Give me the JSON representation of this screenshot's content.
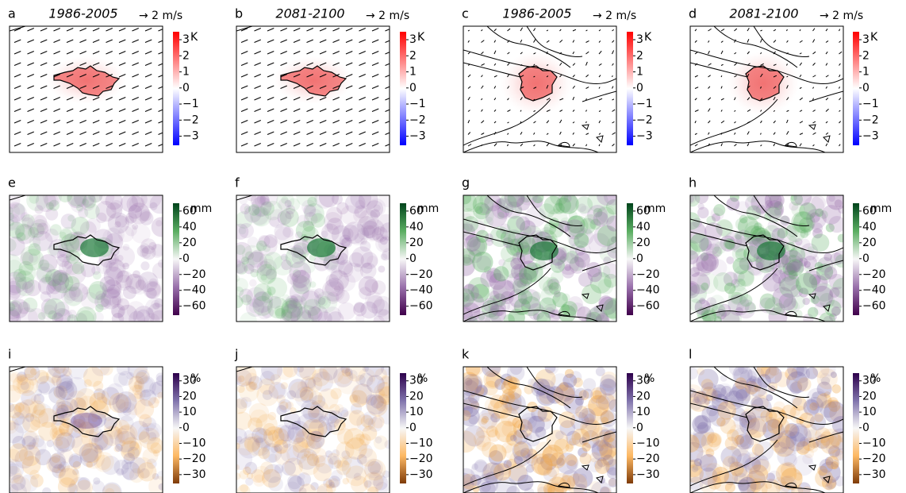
{
  "panels": [
    {
      "label": "a",
      "title": "1986-2005",
      "scale": "→ 2 m/s"
    },
    {
      "label": "b",
      "title": "2081-2100",
      "scale": "→ 2 m/s"
    },
    {
      "label": "c",
      "title": "1986-2005",
      "scale": "→ 2 m/s"
    },
    {
      "label": "d",
      "title": "2081-2100",
      "scale": "→ 2 m/s"
    },
    {
      "label": "e"
    },
    {
      "label": "f"
    },
    {
      "label": "g"
    },
    {
      "label": "h"
    },
    {
      "label": "i"
    },
    {
      "label": "j"
    },
    {
      "label": "k"
    },
    {
      "label": "l"
    }
  ],
  "colorbars": [
    {
      "unit": "K",
      "ticks": [
        "3",
        "2",
        "1",
        "0",
        "−1",
        "−2",
        "−3"
      ]
    },
    {
      "unit": "mm",
      "ticks": [
        "60",
        "40",
        "20",
        "0",
        "−20",
        "−40",
        "−60"
      ]
    },
    {
      "unit": "%",
      "ticks": [
        "30",
        "20",
        "10",
        "0",
        "−10",
        "−20",
        "−30"
      ]
    }
  ]
}
